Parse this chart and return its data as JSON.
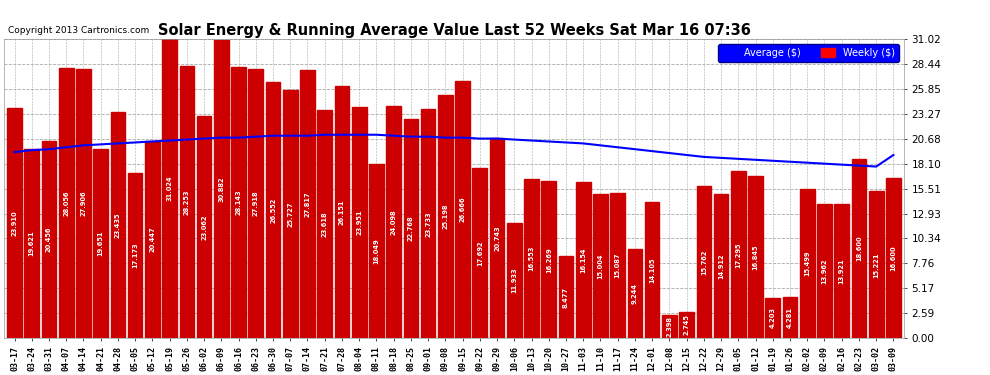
{
  "title": "Solar Energy & Running Average Value Last 52 Weeks Sat Mar 16 07:36",
  "copyright": "Copyright 2013 Cartronics.com",
  "bar_color": "#cc0000",
  "line_color": "blue",
  "background_color": "#ffffff",
  "plot_bg_color": "#ffffff",
  "grid_color": "#aaaaaa",
  "ylim": [
    0,
    31.02
  ],
  "yticks": [
    0.0,
    2.59,
    5.17,
    7.76,
    10.34,
    12.93,
    15.51,
    18.1,
    20.68,
    23.27,
    25.85,
    28.44,
    31.02
  ],
  "categories": [
    "03-17",
    "03-24",
    "03-31",
    "04-07",
    "04-14",
    "04-21",
    "04-28",
    "05-05",
    "05-12",
    "05-19",
    "05-26",
    "06-02",
    "06-09",
    "06-16",
    "06-23",
    "06-30",
    "07-07",
    "07-14",
    "07-21",
    "07-28",
    "08-04",
    "08-11",
    "08-18",
    "08-25",
    "09-01",
    "09-08",
    "09-15",
    "09-22",
    "09-29",
    "10-06",
    "10-13",
    "10-20",
    "10-27",
    "11-03",
    "11-10",
    "11-17",
    "11-24",
    "12-01",
    "12-08",
    "12-15",
    "12-22",
    "12-29",
    "01-05",
    "01-12",
    "01-19",
    "01-26",
    "02-02",
    "02-09",
    "02-16",
    "02-23",
    "03-02",
    "03-09"
  ],
  "weekly_values": [
    23.91,
    19.621,
    20.456,
    28.056,
    27.906,
    19.651,
    23.435,
    17.173,
    20.447,
    31.024,
    28.253,
    23.062,
    30.882,
    28.143,
    27.918,
    26.552,
    25.727,
    27.817,
    23.618,
    26.151,
    23.951,
    18.049,
    24.098,
    22.768,
    23.733,
    25.198,
    26.666,
    17.692,
    20.743,
    11.933,
    16.553,
    16.269,
    8.477,
    16.154,
    15.004,
    15.087,
    9.244,
    14.105,
    2.398,
    2.745,
    15.762,
    14.912,
    17.295,
    16.845,
    4.203,
    4.281,
    15.499,
    13.962,
    13.921,
    18.6,
    15.221,
    16.6
  ],
  "avg_values": [
    19.3,
    19.5,
    19.6,
    19.8,
    20.0,
    20.1,
    20.2,
    20.3,
    20.4,
    20.5,
    20.6,
    20.7,
    20.8,
    20.8,
    20.9,
    21.0,
    21.0,
    21.0,
    21.1,
    21.1,
    21.1,
    21.1,
    21.0,
    20.9,
    20.9,
    20.8,
    20.8,
    20.7,
    20.7,
    20.6,
    20.5,
    20.4,
    20.3,
    20.2,
    20.0,
    19.8,
    19.6,
    19.4,
    19.2,
    19.0,
    18.8,
    18.7,
    18.6,
    18.5,
    18.4,
    18.3,
    18.2,
    18.1,
    18.0,
    17.9,
    17.8,
    19.0
  ]
}
